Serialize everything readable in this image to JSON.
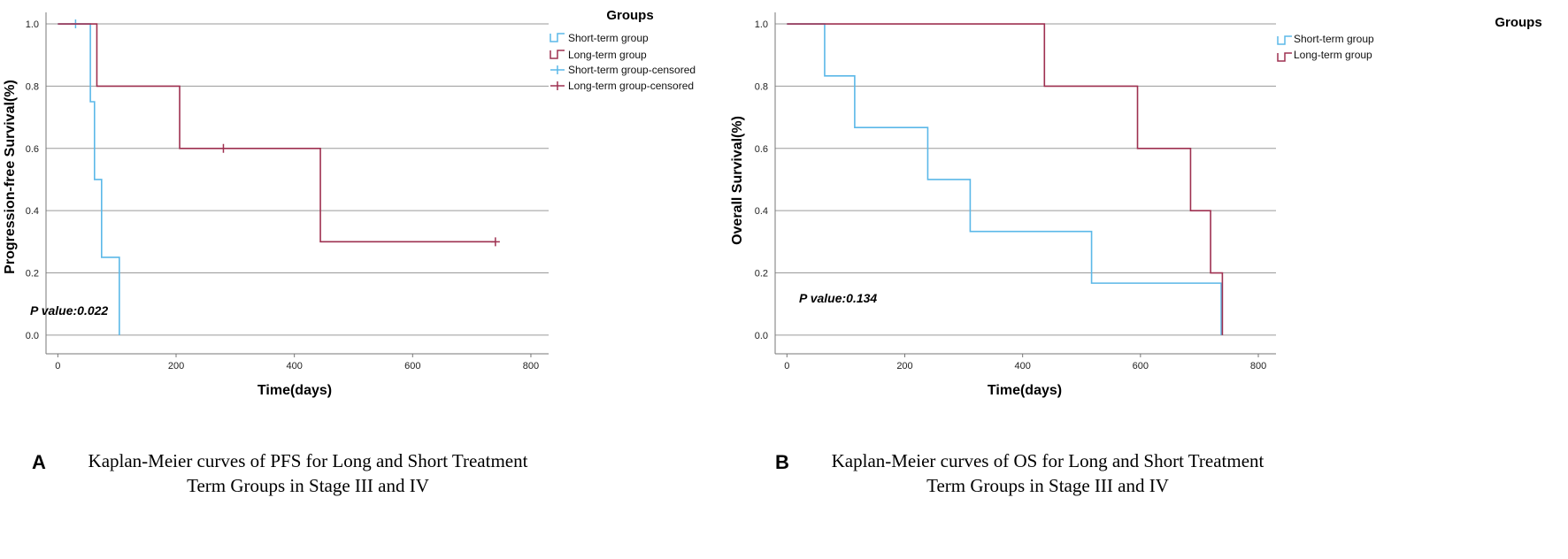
{
  "colors": {
    "short_term": "#5bb8e8",
    "long_term": "#9e3050",
    "grid": "#9a9a9a",
    "axis": "#777777"
  },
  "chart_data": [
    {
      "id": "A",
      "type": "line",
      "subtype": "kaplan-meier",
      "panel_letter": "A",
      "caption": [
        "Kaplan-Meier curves of PFS for Long and Short Treatment",
        "Term Groups in Stage III and IV"
      ],
      "xlabel": "Time(days)",
      "ylabel": "Progression-free Survival(%)",
      "xlim": [
        -20,
        830
      ],
      "ylim": [
        -0.06,
        1.02
      ],
      "x_ticks": [
        0,
        200,
        400,
        600,
        800
      ],
      "y_ticks": [
        0.0,
        0.2,
        0.4,
        0.6,
        0.8,
        1.0
      ],
      "y_tick_labels": [
        "0.0",
        "0.2",
        "0.4",
        "0.6",
        "0.8",
        "1.0"
      ],
      "grid": "horizontal",
      "p_value_text": "P value:0.022",
      "legend": {
        "title": "Groups",
        "placement": "top-right",
        "entries": [
          "Short-term group",
          "Long-term group",
          "Short-term group-censored",
          "Long-term group-censored"
        ]
      },
      "series": [
        {
          "name": "Short-term group",
          "color_key": "short_term",
          "steps": [
            [
              0,
              1.0
            ],
            [
              55,
              0.75
            ],
            [
              62,
              0.5
            ],
            [
              74,
              0.25
            ],
            [
              104,
              0.0
            ]
          ],
          "censored": [
            [
              30,
              1.0
            ]
          ]
        },
        {
          "name": "Long-term group",
          "color_key": "long_term",
          "steps": [
            [
              0,
              1.0
            ],
            [
              66,
              0.8
            ],
            [
              206,
              0.6
            ],
            [
              444,
              0.3
            ],
            [
              740,
              0.3
            ]
          ],
          "censored": [
            [
              280,
              0.6
            ],
            [
              740,
              0.3
            ]
          ]
        }
      ]
    },
    {
      "id": "B",
      "type": "line",
      "subtype": "kaplan-meier",
      "panel_letter": "B",
      "caption": [
        "Kaplan-Meier curves of OS for Long and Short Treatment",
        "Term Groups in Stage III and IV"
      ],
      "xlabel": "Time(days)",
      "ylabel": "Overall Survival(%)",
      "xlim": [
        -20,
        830
      ],
      "ylim": [
        -0.06,
        1.02
      ],
      "x_ticks": [
        0,
        200,
        400,
        600,
        800
      ],
      "y_ticks": [
        0.0,
        0.2,
        0.4,
        0.6,
        0.8,
        1.0
      ],
      "y_tick_labels": [
        "0.0",
        "0.2",
        "0.4",
        "0.6",
        "0.8",
        "1.0"
      ],
      "grid": "horizontal",
      "p_value_text": "P value:0.134",
      "legend": {
        "title": "Groups",
        "placement": "top-right",
        "entries": [
          "Short-term group",
          "Long-term group"
        ]
      },
      "series": [
        {
          "name": "Short-term group",
          "color_key": "short_term",
          "steps": [
            [
              0,
              1.0
            ],
            [
              64,
              0.833
            ],
            [
              115,
              0.667
            ],
            [
              239,
              0.5
            ],
            [
              311,
              0.333
            ],
            [
              517,
              0.167
            ],
            [
              737,
              0.0
            ]
          ],
          "censored": []
        },
        {
          "name": "Long-term group",
          "color_key": "long_term",
          "steps": [
            [
              0,
              1.0
            ],
            [
              437,
              0.8
            ],
            [
              595,
              0.6
            ],
            [
              685,
              0.4
            ],
            [
              719,
              0.2
            ],
            [
              739,
              0.0
            ]
          ],
          "censored": []
        }
      ]
    }
  ]
}
